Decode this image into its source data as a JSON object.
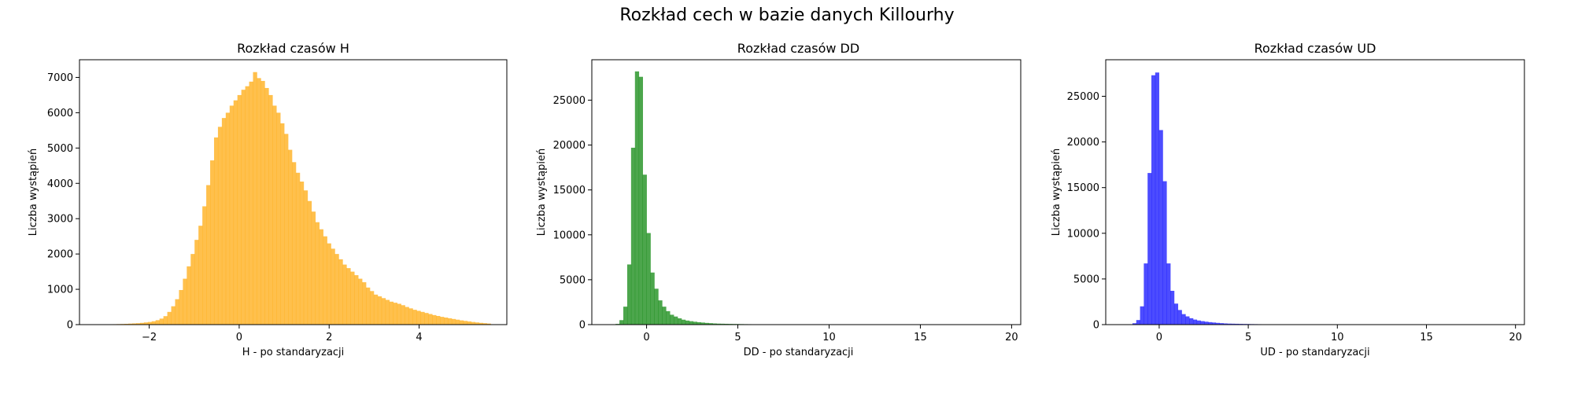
{
  "suptitle": "Rozkład cech w bazie danych Killourhy",
  "chart_data": [
    {
      "type": "bar",
      "title": "Rozkład czasów H",
      "xlabel": "H - po standaryzacji",
      "ylabel": "Liczba wystąpień",
      "color": "#FFA500",
      "alpha": 0.7,
      "xlim": [
        -3.55,
        5.95
      ],
      "ylim": [
        0,
        7500
      ],
      "xticks": [
        -2,
        0,
        2,
        4
      ],
      "yticks": [
        0,
        1000,
        2000,
        3000,
        4000,
        5000,
        6000,
        7000
      ],
      "bin_start": -3.07,
      "bin_width": 0.0866,
      "values": [
        6,
        8,
        10,
        12,
        15,
        18,
        22,
        28,
        34,
        40,
        50,
        62,
        75,
        95,
        125,
        170,
        240,
        360,
        520,
        720,
        980,
        1300,
        1650,
        2000,
        2400,
        2800,
        3350,
        3950,
        4650,
        5300,
        5600,
        5850,
        6000,
        6200,
        6350,
        6500,
        6650,
        6750,
        6880,
        7150,
        6980,
        6900,
        6700,
        6500,
        6200,
        6000,
        5700,
        5400,
        4950,
        4600,
        4300,
        4050,
        3800,
        3500,
        3200,
        2900,
        2700,
        2500,
        2300,
        2150,
        2000,
        1850,
        1700,
        1600,
        1500,
        1400,
        1300,
        1200,
        1050,
        950,
        850,
        800,
        750,
        700,
        650,
        620,
        590,
        550,
        500,
        460,
        420,
        390,
        360,
        330,
        300,
        270,
        245,
        220,
        200,
        180,
        160,
        140,
        120,
        105,
        90,
        75,
        62,
        50,
        40,
        30
      ]
    },
    {
      "type": "bar",
      "title": "Rozkład czasów DD",
      "xlabel": "DD - po standaryzacji",
      "ylabel": "Liczba wystąpień",
      "color": "#008000",
      "alpha": 0.7,
      "xlim": [
        -3.0,
        20.5
      ],
      "ylim": [
        0,
        29500
      ],
      "xticks": [
        0,
        5,
        10,
        15,
        20
      ],
      "yticks": [
        0,
        5000,
        10000,
        15000,
        20000,
        25000
      ],
      "bin_start": -1.7,
      "bin_width": 0.2125,
      "values": [
        80,
        500,
        2000,
        6700,
        19700,
        28200,
        27600,
        16700,
        10200,
        5800,
        4000,
        2700,
        2000,
        1500,
        1100,
        900,
        700,
        550,
        450,
        380,
        320,
        270,
        230,
        190,
        160,
        130,
        110,
        100,
        90,
        80,
        72,
        65,
        58,
        52,
        46,
        41,
        37,
        33,
        29,
        26,
        23,
        20,
        18,
        16,
        14,
        12,
        10,
        9,
        8,
        7,
        6,
        5,
        4,
        4,
        3,
        3,
        2,
        2,
        2,
        1,
        1,
        1,
        1,
        1,
        1,
        1,
        1,
        1,
        1,
        1,
        1,
        0,
        0,
        0,
        0,
        0,
        0,
        0,
        0,
        0,
        0,
        0,
        0,
        0,
        0,
        0,
        0,
        0,
        0,
        0,
        0,
        0,
        0,
        0,
        0,
        0,
        0,
        0,
        0,
        1
      ]
    },
    {
      "type": "bar",
      "title": "Rozkład czasów UD",
      "xlabel": "UD - po standaryzacji",
      "ylabel": "Liczba wystąpień",
      "color": "#0000FF",
      "alpha": 0.7,
      "xlim": [
        -3.0,
        20.5
      ],
      "ylim": [
        0,
        29000
      ],
      "xticks": [
        0,
        5,
        10,
        15,
        20
      ],
      "yticks": [
        0,
        5000,
        10000,
        15000,
        20000,
        25000
      ],
      "bin_start": -1.5,
      "bin_width": 0.2125,
      "values": [
        150,
        500,
        2000,
        6700,
        16600,
        27300,
        27600,
        21300,
        15700,
        6700,
        3700,
        2300,
        1600,
        1150,
        900,
        700,
        550,
        450,
        380,
        320,
        270,
        230,
        190,
        160,
        130,
        110,
        100,
        90,
        80,
        72,
        65,
        58,
        52,
        46,
        41,
        37,
        33,
        29,
        26,
        23,
        20,
        18,
        16,
        14,
        12,
        10,
        9,
        8,
        7,
        6,
        5,
        4,
        4,
        3,
        3,
        2,
        2,
        2,
        1,
        1,
        1,
        1,
        1,
        1,
        1,
        1,
        1,
        1,
        1,
        1,
        0,
        0,
        0,
        0,
        0,
        0,
        0,
        0,
        0,
        0,
        0,
        0,
        0,
        0,
        0,
        0,
        0,
        0,
        0,
        0,
        0,
        0,
        0,
        0,
        0,
        0,
        0,
        0,
        1
      ]
    }
  ]
}
